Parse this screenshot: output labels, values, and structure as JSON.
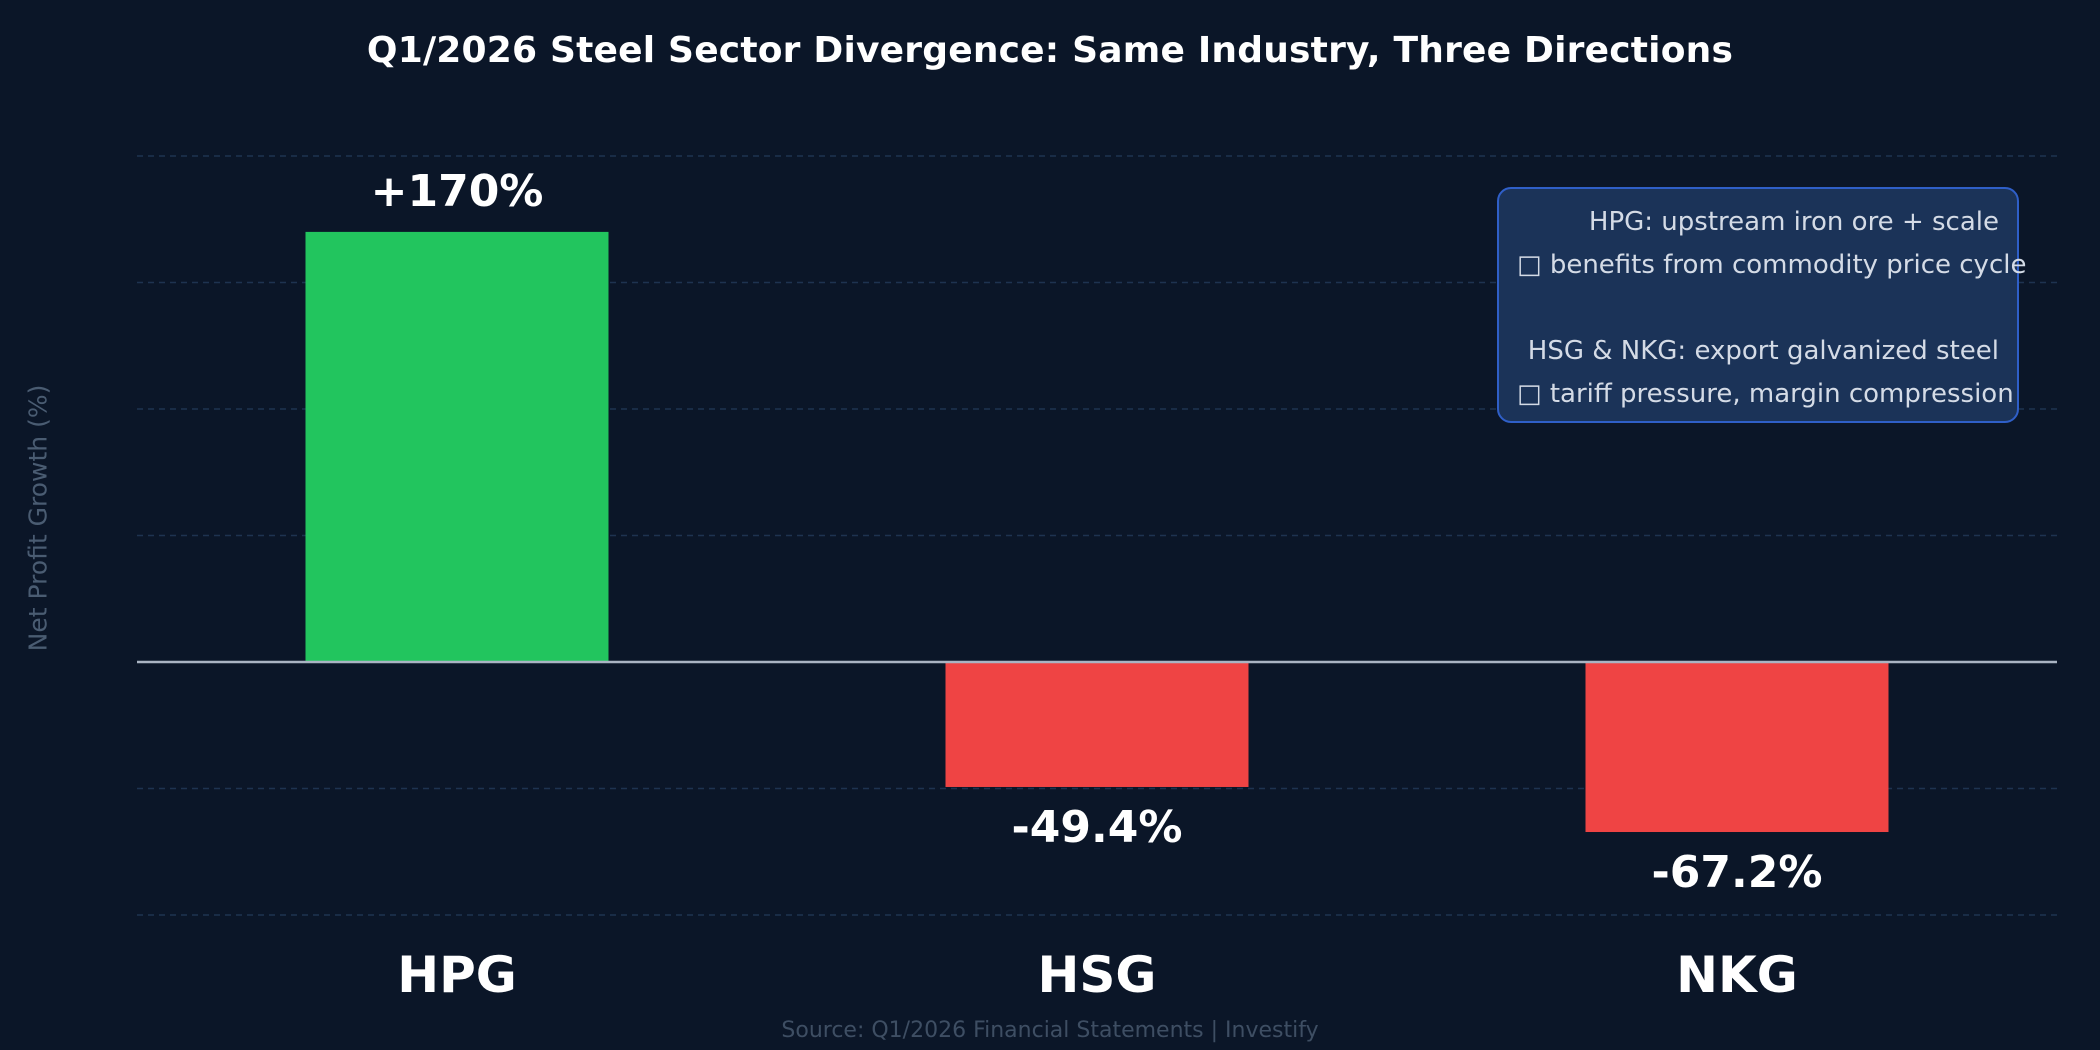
{
  "chart_data": {
    "type": "bar",
    "title": "Q1/2026 Steel Sector Divergence: Same Industry, Three Directions",
    "ylabel": "Net Profit Growth (%)",
    "xlabel": "",
    "categories": [
      "HPG",
      "HSG",
      "NKG"
    ],
    "values": [
      170,
      -49.4,
      -67.2
    ],
    "data_labels": [
      "+170%",
      "-49.4%",
      "-67.2%"
    ],
    "bar_colors": [
      "#22c55e",
      "#ef4444",
      "#ef4444"
    ],
    "ylim": [
      -100,
      200
    ],
    "gridlines": [
      -100,
      -50,
      50,
      100,
      150,
      200
    ],
    "grid": true,
    "legend": "none",
    "annotation": [
      "HPG: upstream iron ore + scale",
      "□ benefits from commodity price cycle",
      "",
      "HSG & NKG: export galvanized steel",
      "□ tariff pressure, margin compression"
    ],
    "source": "Source: Q1/2026 Financial Statements  |  Investify"
  },
  "colors": {
    "background": "#0b1628",
    "positive": "#22c55e",
    "negative": "#ef4444",
    "grid": "#1e3350",
    "zero_line": "#aab4c3",
    "annotation_bg": "#1b3358",
    "annotation_border": "#2f5fc8"
  }
}
